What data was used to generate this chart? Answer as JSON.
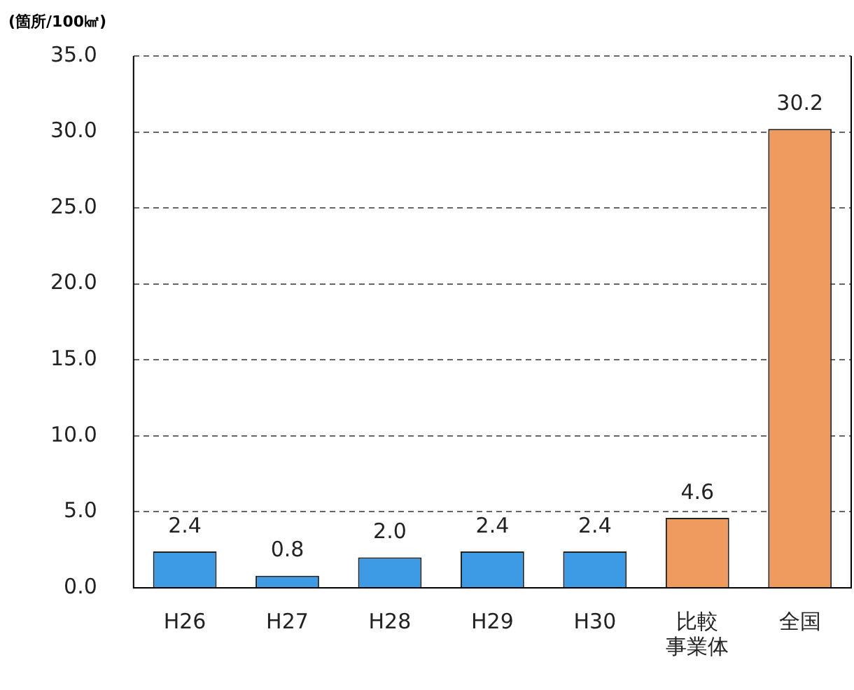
{
  "chart_data": {
    "type": "bar",
    "ylabel": "(箇所/100㎢)",
    "categories": [
      "H26",
      "H27",
      "H28",
      "H29",
      "H30",
      "比較事業体",
      "全国"
    ],
    "values": [
      2.4,
      0.8,
      2.0,
      2.4,
      2.4,
      4.6,
      30.2
    ],
    "colors": [
      "#3d9be6",
      "#3d9be6",
      "#3d9be6",
      "#3d9be6",
      "#3d9be6",
      "#ef9a5e",
      "#ef9a5e"
    ],
    "value_labels": [
      "2.4",
      "0.8",
      "2.0",
      "2.4",
      "2.4",
      "4.6",
      "30.2"
    ],
    "ylim": [
      0,
      35
    ],
    "yticks": [
      {
        "value": 0,
        "label": "0.0"
      },
      {
        "value": 5,
        "label": "5.0"
      },
      {
        "value": 10,
        "label": "10.0"
      },
      {
        "value": 15,
        "label": "15.0"
      },
      {
        "value": 20,
        "label": "20.0"
      },
      {
        "value": 25,
        "label": "25.0"
      },
      {
        "value": 30,
        "label": "30.0"
      },
      {
        "value": 35,
        "label": "35.0"
      }
    ],
    "grid": "y",
    "legend": false
  }
}
